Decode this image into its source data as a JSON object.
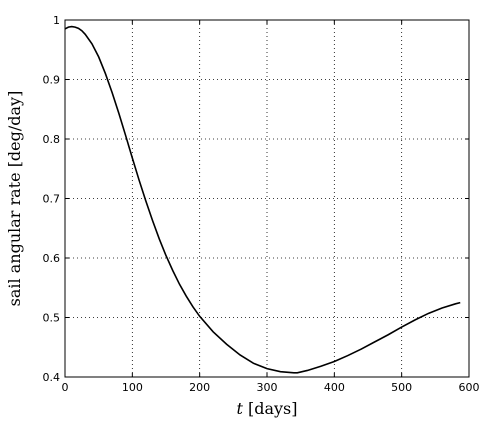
{
  "chart_data": {
    "type": "line",
    "title": "",
    "xlabel_italic": "t",
    "xlabel_rest": " [days]",
    "ylabel": "sail angular rate [deg/day]",
    "xlim": [
      0,
      600
    ],
    "ylim": [
      0.4,
      1.0
    ],
    "xticks": [
      0,
      100,
      200,
      300,
      400,
      500,
      600
    ],
    "yticks": [
      0.4,
      0.5,
      0.6,
      0.7,
      0.8,
      0.9,
      1.0
    ],
    "xtick_labels": [
      "0",
      "100",
      "200",
      "300",
      "400",
      "500",
      "600"
    ],
    "ytick_labels": [
      "0.4",
      "0.5",
      "0.6",
      "0.7",
      "0.8",
      "0.9",
      "1"
    ],
    "grid": true,
    "series": [
      {
        "x": [
          0,
          5,
          10,
          15,
          20,
          25,
          30,
          40,
          50,
          60,
          70,
          80,
          90,
          100,
          110,
          120,
          130,
          140,
          150,
          160,
          170,
          180,
          190,
          200,
          220,
          240,
          260,
          280,
          300,
          320,
          340,
          345,
          360,
          380,
          400,
          420,
          440,
          460,
          480,
          500,
          520,
          540,
          560,
          580,
          587
        ],
        "y": [
          0.985,
          0.988,
          0.989,
          0.988,
          0.986,
          0.982,
          0.976,
          0.96,
          0.938,
          0.91,
          0.878,
          0.843,
          0.806,
          0.768,
          0.731,
          0.696,
          0.663,
          0.632,
          0.604,
          0.579,
          0.556,
          0.536,
          0.518,
          0.502,
          0.476,
          0.455,
          0.437,
          0.423,
          0.414,
          0.409,
          0.407,
          0.407,
          0.411,
          0.418,
          0.426,
          0.436,
          0.447,
          0.459,
          0.471,
          0.484,
          0.496,
          0.507,
          0.516,
          0.523,
          0.525
        ]
      }
    ]
  }
}
